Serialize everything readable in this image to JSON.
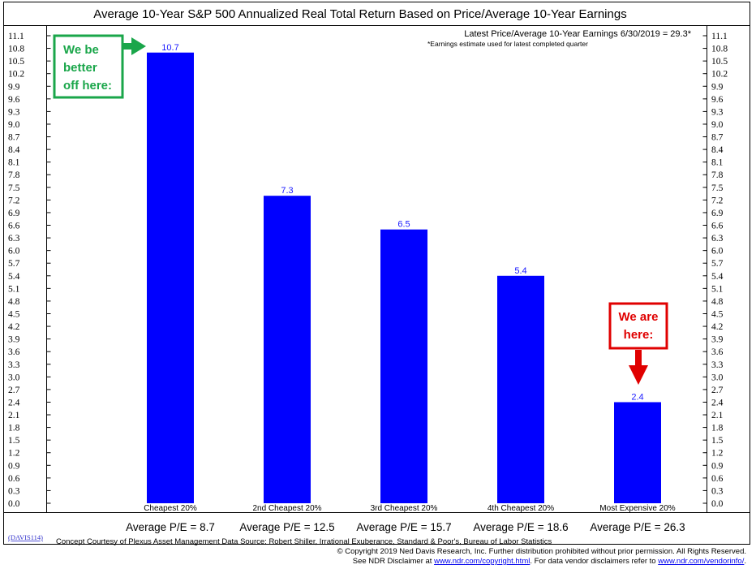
{
  "chart_data": {
    "type": "bar",
    "title": "Average 10-Year S&P 500 Annualized Real Total Return Based on Price/Average 10-Year Earnings",
    "categories": [
      "Cheapest 20%",
      "2nd Cheapest 20%",
      "3rd Cheapest 20%",
      "4th Cheapest 20%",
      "Most Expensive 20%"
    ],
    "values": [
      10.7,
      7.3,
      6.5,
      5.4,
      2.4
    ],
    "data_labels": [
      "10.7",
      "7.3",
      "6.5",
      "5.4",
      "2.4"
    ],
    "ylim": [
      0,
      11.1
    ],
    "yticks": [
      "0.0",
      "0.3",
      "0.6",
      "0.9",
      "1.2",
      "1.5",
      "1.8",
      "2.1",
      "2.4",
      "2.7",
      "3.0",
      "3.3",
      "3.6",
      "3.9",
      "4.2",
      "4.5",
      "4.8",
      "5.1",
      "5.4",
      "5.7",
      "6.0",
      "6.3",
      "6.6",
      "6.9",
      "7.2",
      "7.5",
      "7.8",
      "8.1",
      "8.4",
      "8.7",
      "9.0",
      "9.3",
      "9.6",
      "9.9",
      "10.2",
      "10.5",
      "10.8",
      "11.1"
    ],
    "y_axis_sides": "both",
    "grid": false,
    "bar_color": "#0000ff",
    "label_color": "#1a1aff",
    "pe_labels": [
      "Average P/E = 8.7",
      "Average P/E = 12.5",
      "Average P/E = 15.7",
      "Average P/E = 18.6",
      "Average P/E = 26.3"
    ],
    "annotations": {
      "latest": "Latest Price/Average 10-Year Earnings 6/30/2019 = 29.3*",
      "footnote": "*Earnings estimate used for latest completed quarter"
    },
    "callouts": [
      {
        "lines": [
          "We be",
          "better",
          "off here:"
        ],
        "color": "#1aa64a",
        "points_to": "Cheapest 20%"
      },
      {
        "lines": [
          "We are",
          "here:"
        ],
        "color": "#e00000",
        "points_to": "Most Expensive 20%"
      }
    ]
  },
  "footer": {
    "davis_id": "(DAVIS114)",
    "source": "Concept Courtesy of Plexus Asset Management Data Source: Robert Shiller, Irrational Exuberance, Standard & Poor's, Bureau of Labor Statistics",
    "copyright": "© Copyright 2019 Ned Davis Research, Inc. Further distribution prohibited without prior permission. All Rights Reserved.",
    "disclaimer_prefix": "See NDR Disclaimer at ",
    "disclaimer_link1": "www.ndr.com/copyright.html",
    "disclaimer_middle": ". For data vendor disclaimers refer to ",
    "disclaimer_link2": "www.ndr.com/vendorinfo/",
    "disclaimer_suffix": "."
  }
}
